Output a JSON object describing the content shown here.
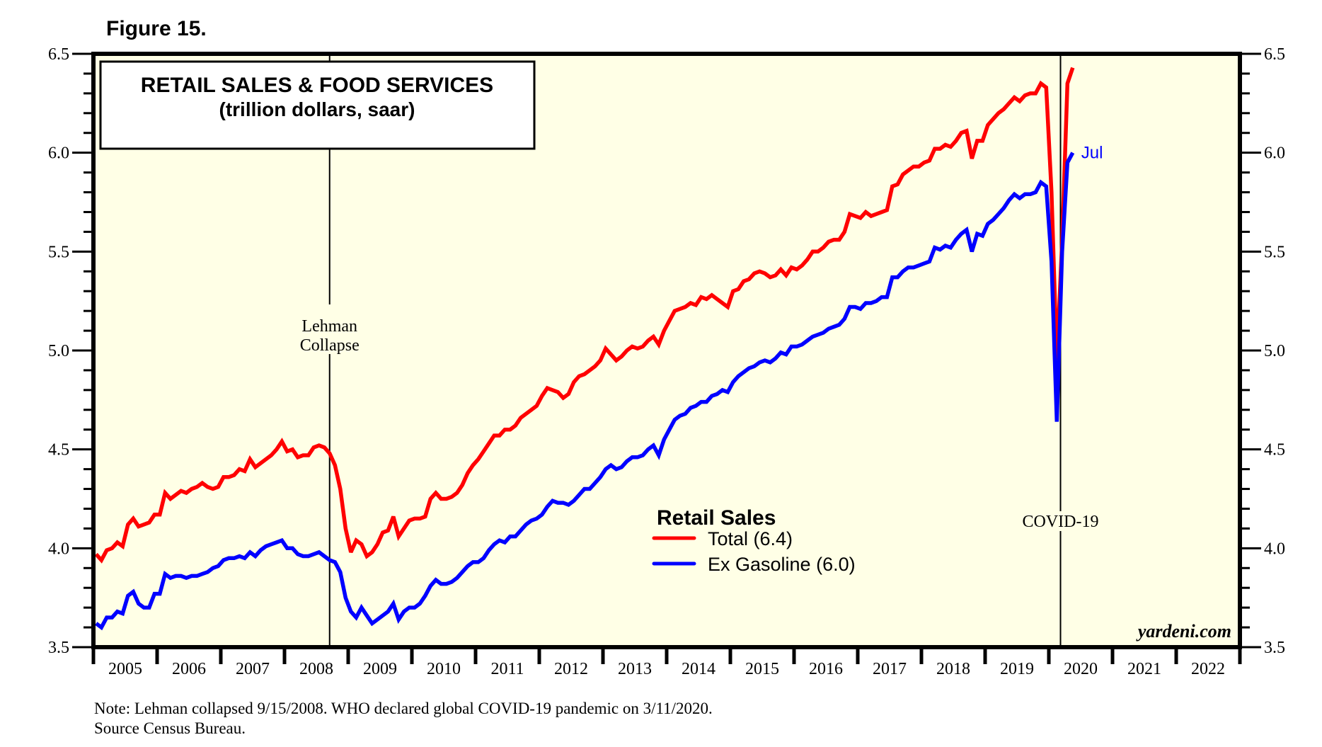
{
  "figure_label": "Figure 15.",
  "chart_data": {
    "type": "line",
    "title": "RETAIL SALES & FOOD SERVICES",
    "subtitle": "(trillion dollars, saar)",
    "xlabel": "",
    "ylabel": "",
    "ylim": [
      3.5,
      6.5
    ],
    "y_ticks": [
      "3.5",
      "4.0",
      "4.5",
      "5.0",
      "5.5",
      "6.0",
      "6.5"
    ],
    "y_tick_values": [
      3.5,
      4.0,
      4.5,
      5.0,
      5.5,
      6.0,
      6.5
    ],
    "y_minor_step": 0.1,
    "x_range": [
      "2005-01",
      "2022-12"
    ],
    "x_tick_labels": [
      "2005",
      "2006",
      "2007",
      "2008",
      "2009",
      "2010",
      "2011",
      "2012",
      "2013",
      "2014",
      "2015",
      "2016",
      "2017",
      "2018",
      "2019",
      "2020",
      "2021",
      "2022"
    ],
    "x_start": "2005-01",
    "frequency": "monthly",
    "grid": false,
    "legend": {
      "title": "Retail Sales",
      "placement": "center-bottom",
      "entries": [
        {
          "label": "Total (6.4)",
          "color": "#ff0000"
        },
        {
          "label": "Ex Gasoline (6.0)",
          "color": "#0000ff"
        }
      ]
    },
    "series": [
      {
        "name": "Total",
        "color": "#ff0000",
        "values": [
          3.97,
          3.94,
          3.99,
          4.0,
          4.03,
          4.01,
          4.12,
          4.15,
          4.11,
          4.12,
          4.13,
          4.17,
          4.17,
          4.28,
          4.25,
          4.27,
          4.29,
          4.28,
          4.3,
          4.31,
          4.33,
          4.31,
          4.3,
          4.31,
          4.36,
          4.36,
          4.37,
          4.4,
          4.39,
          4.45,
          4.41,
          4.43,
          4.45,
          4.47,
          4.5,
          4.54,
          4.49,
          4.5,
          4.46,
          4.47,
          4.47,
          4.51,
          4.52,
          4.51,
          4.48,
          4.42,
          4.3,
          4.1,
          3.98,
          4.04,
          4.02,
          3.96,
          3.98,
          4.02,
          4.08,
          4.09,
          4.16,
          4.06,
          4.1,
          4.14,
          4.15,
          4.15,
          4.16,
          4.25,
          4.28,
          4.25,
          4.25,
          4.26,
          4.28,
          4.32,
          4.38,
          4.42,
          4.45,
          4.49,
          4.53,
          4.57,
          4.57,
          4.6,
          4.6,
          4.62,
          4.66,
          4.68,
          4.7,
          4.72,
          4.77,
          4.81,
          4.8,
          4.79,
          4.76,
          4.78,
          4.84,
          4.87,
          4.88,
          4.9,
          4.92,
          4.95,
          5.01,
          4.98,
          4.95,
          4.97,
          5.0,
          5.02,
          5.01,
          5.02,
          5.05,
          5.07,
          5.03,
          5.1,
          5.15,
          5.2,
          5.21,
          5.22,
          5.24,
          5.23,
          5.27,
          5.26,
          5.28,
          5.26,
          5.24,
          5.22,
          5.3,
          5.31,
          5.35,
          5.36,
          5.39,
          5.4,
          5.39,
          5.37,
          5.38,
          5.41,
          5.38,
          5.42,
          5.41,
          5.43,
          5.46,
          5.5,
          5.5,
          5.52,
          5.55,
          5.56,
          5.56,
          5.6,
          5.69,
          5.68,
          5.67,
          5.7,
          5.68,
          5.69,
          5.7,
          5.71,
          5.83,
          5.84,
          5.89,
          5.91,
          5.93,
          5.93,
          5.95,
          5.96,
          6.02,
          6.02,
          6.04,
          6.03,
          6.06,
          6.1,
          6.11,
          5.97,
          6.06,
          6.06,
          6.14,
          6.17,
          6.2,
          6.22,
          6.25,
          6.28,
          6.26,
          6.29,
          6.3,
          6.3,
          6.35,
          6.33,
          5.8,
          4.95,
          5.55,
          6.35,
          6.43
        ]
      },
      {
        "name": "Ex Gasoline",
        "color": "#0000ff",
        "values": [
          3.62,
          3.6,
          3.65,
          3.65,
          3.68,
          3.67,
          3.76,
          3.78,
          3.72,
          3.7,
          3.7,
          3.77,
          3.77,
          3.87,
          3.85,
          3.86,
          3.86,
          3.85,
          3.86,
          3.86,
          3.87,
          3.88,
          3.9,
          3.91,
          3.94,
          3.95,
          3.95,
          3.96,
          3.95,
          3.98,
          3.96,
          3.99,
          4.01,
          4.02,
          4.03,
          4.04,
          4.0,
          4.0,
          3.97,
          3.96,
          3.96,
          3.97,
          3.98,
          3.96,
          3.94,
          3.93,
          3.88,
          3.75,
          3.68,
          3.65,
          3.7,
          3.66,
          3.62,
          3.64,
          3.66,
          3.68,
          3.72,
          3.64,
          3.68,
          3.7,
          3.7,
          3.72,
          3.76,
          3.81,
          3.84,
          3.82,
          3.82,
          3.83,
          3.85,
          3.88,
          3.91,
          3.93,
          3.93,
          3.95,
          3.99,
          4.02,
          4.04,
          4.03,
          4.06,
          4.06,
          4.09,
          4.12,
          4.14,
          4.15,
          4.17,
          4.21,
          4.24,
          4.23,
          4.23,
          4.22,
          4.24,
          4.27,
          4.3,
          4.3,
          4.33,
          4.36,
          4.4,
          4.42,
          4.4,
          4.41,
          4.44,
          4.46,
          4.46,
          4.47,
          4.5,
          4.52,
          4.47,
          4.55,
          4.6,
          4.65,
          4.67,
          4.68,
          4.71,
          4.72,
          4.74,
          4.74,
          4.77,
          4.78,
          4.8,
          4.79,
          4.84,
          4.87,
          4.89,
          4.91,
          4.92,
          4.94,
          4.95,
          4.94,
          4.96,
          4.99,
          4.98,
          5.02,
          5.02,
          5.03,
          5.05,
          5.07,
          5.08,
          5.09,
          5.11,
          5.12,
          5.13,
          5.16,
          5.22,
          5.22,
          5.21,
          5.24,
          5.24,
          5.25,
          5.27,
          5.27,
          5.37,
          5.37,
          5.4,
          5.42,
          5.42,
          5.43,
          5.44,
          5.45,
          5.52,
          5.51,
          5.53,
          5.52,
          5.56,
          5.59,
          5.61,
          5.5,
          5.59,
          5.58,
          5.64,
          5.66,
          5.69,
          5.72,
          5.76,
          5.79,
          5.77,
          5.79,
          5.79,
          5.8,
          5.85,
          5.83,
          5.45,
          4.64,
          5.5,
          5.95,
          6.0
        ]
      }
    ],
    "annotations": [
      {
        "text": [
          "Lehman",
          "Collapse"
        ],
        "date": "2008-09",
        "type": "vertical-line"
      },
      {
        "text": [
          "COVID-19"
        ],
        "date": "2020-03",
        "type": "vertical-line"
      },
      {
        "text": "Jul",
        "series": "Ex Gasoline",
        "type": "end-label",
        "color": "#0000ff"
      },
      {
        "text": "yardeni.com",
        "type": "watermark",
        "placement": "bottom-right"
      }
    ]
  },
  "annotations_text": {
    "lehman_line1": "Lehman",
    "lehman_line2": "Collapse",
    "covid": "COVID-19",
    "end_label": "Jul",
    "watermark": "yardeni.com"
  },
  "footnote": {
    "line1": "Note: Lehman collapsed 9/15/2008. WHO declared global COVID-19 pandemic on 3/11/2020.",
    "line2": "Source Census Bureau."
  },
  "colors": {
    "plot_background": "#ffffe6",
    "total": "#ff0000",
    "ex_gasoline": "#0000ff"
  }
}
